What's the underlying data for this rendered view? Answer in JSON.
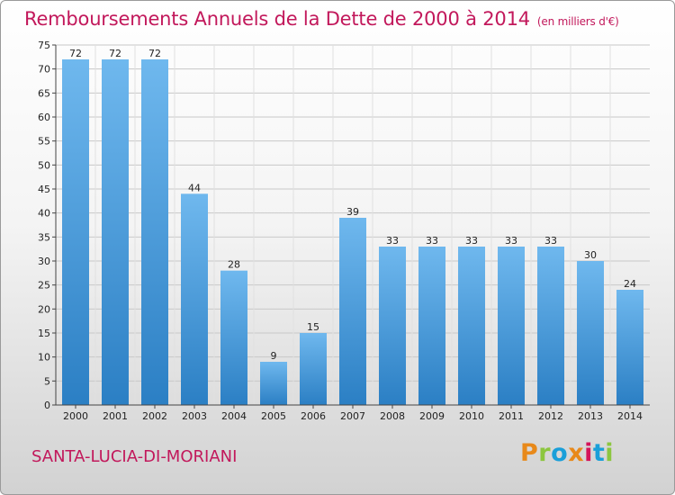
{
  "header": {
    "title": "Remboursements Annuels de la Dette de 2000 à 2014",
    "subtitle": "(en milliers d'€)"
  },
  "footer": {
    "commune": "SANTA-LUCIA-DI-MORIANI",
    "logo": "Proxiti"
  },
  "colors": {
    "bar_light": "#6fb8ee",
    "bar_dark": "#2b7fc4",
    "title": "#c2185b",
    "logo": [
      "#e8891a",
      "#8cc63f",
      "#1a9fd9",
      "#e8891a",
      "#d4145a",
      "#1a9fd9",
      "#8cc63f"
    ]
  },
  "chart_data": {
    "type": "bar",
    "categories": [
      "2000",
      "2001",
      "2002",
      "2003",
      "2004",
      "2005",
      "2006",
      "2007",
      "2008",
      "2009",
      "2010",
      "2011",
      "2012",
      "2013",
      "2014"
    ],
    "values": [
      72,
      72,
      72,
      44,
      28,
      9,
      15,
      39,
      33,
      33,
      33,
      33,
      33,
      30,
      24
    ],
    "title": "Remboursements Annuels de la Dette de 2000 à 2014",
    "subtitle": "(en milliers d'€)",
    "ylim": [
      0,
      75
    ],
    "yticks": [
      0,
      5,
      10,
      15,
      20,
      25,
      30,
      35,
      40,
      45,
      50,
      55,
      60,
      65,
      70,
      75
    ],
    "grid": true,
    "data_labels": true
  }
}
